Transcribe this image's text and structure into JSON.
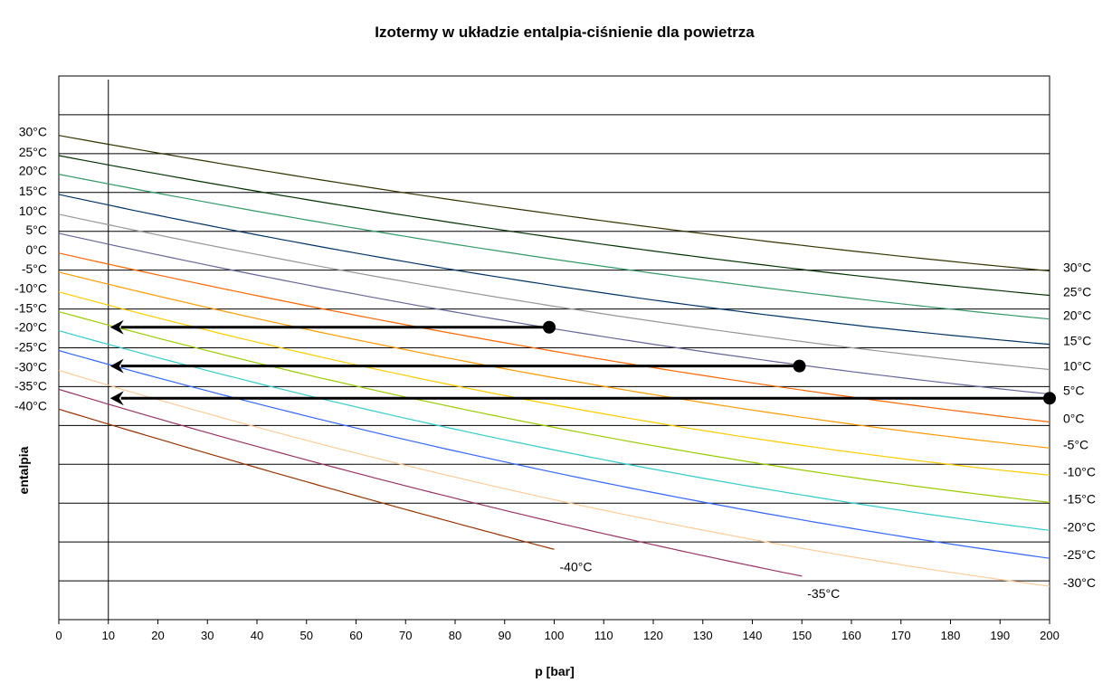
{
  "chart_data": {
    "type": "line",
    "title": "Izotermy w układzie entalpia-ciśnienie dla powietrza",
    "xlabel": "p [bar]",
    "ylabel": "entalpia",
    "xlim": [
      0,
      200
    ],
    "ylim": [
      0,
      14
    ],
    "grid": "horizontal",
    "x_ticks": [
      0,
      10,
      20,
      30,
      40,
      50,
      60,
      70,
      80,
      90,
      100,
      110,
      120,
      130,
      140,
      150,
      160,
      170,
      180,
      190,
      200
    ],
    "reference_line_x": 10,
    "series": [
      {
        "name": "30°C",
        "color": "#333300",
        "x": [
          0,
          100,
          200
        ],
        "y": [
          12.47,
          10.44,
          8.98
        ],
        "left_label": true,
        "right_label": true
      },
      {
        "name": "25°C",
        "color": "#003300",
        "x": [
          0,
          100,
          200
        ],
        "y": [
          11.95,
          9.84,
          8.35
        ],
        "left_label": true,
        "right_label": true
      },
      {
        "name": "20°C",
        "color": "#339966",
        "x": [
          0,
          100,
          200
        ],
        "y": [
          11.47,
          9.28,
          7.74
        ],
        "left_label": true,
        "right_label": true
      },
      {
        "name": "15°C",
        "color": "#003366",
        "x": [
          0,
          100,
          200
        ],
        "y": [
          10.95,
          8.6,
          7.09
        ],
        "left_label": true,
        "right_label": true
      },
      {
        "name": "10°C",
        "color": "#969696",
        "x": [
          0,
          100,
          200
        ],
        "y": [
          10.44,
          8.07,
          6.44
        ],
        "left_label": true,
        "right_label": true
      },
      {
        "name": "5°C",
        "color": "#666699",
        "x": [
          0,
          100,
          200
        ],
        "y": [
          9.95,
          7.49,
          5.81
        ],
        "left_label": true,
        "right_label": true
      },
      {
        "name": "0°C",
        "color": "#ff6600",
        "x": [
          0,
          100,
          200
        ],
        "y": [
          9.44,
          6.91,
          5.09
        ],
        "left_label": true,
        "right_label": true
      },
      {
        "name": "-5°C",
        "color": "#ff9900",
        "x": [
          0,
          100,
          200
        ],
        "y": [
          8.95,
          6.23,
          4.42
        ],
        "left_label": true,
        "right_label": true
      },
      {
        "name": "-10°C",
        "color": "#ffcc00",
        "x": [
          0,
          100,
          200
        ],
        "y": [
          8.44,
          5.53,
          3.72
        ],
        "left_label": true,
        "right_label": true
      },
      {
        "name": "-15°C",
        "color": "#99cc00",
        "x": [
          0,
          100,
          200
        ],
        "y": [
          7.93,
          4.95,
          3.02
        ],
        "left_label": true,
        "right_label": true
      },
      {
        "name": "-20°C",
        "color": "#33cccc",
        "x": [
          0,
          100,
          200
        ],
        "y": [
          7.44,
          4.37,
          2.3
        ],
        "left_label": true,
        "right_label": true
      },
      {
        "name": "-25°C",
        "color": "#3366ff",
        "x": [
          0,
          100,
          200
        ],
        "y": [
          6.93,
          3.79,
          1.58
        ],
        "left_label": true,
        "right_label": true
      },
      {
        "name": "-30°C",
        "color": "#ffcc99",
        "x": [
          0,
          100,
          200
        ],
        "y": [
          6.42,
          3.09,
          0.86
        ],
        "left_label": true,
        "right_label": true
      },
      {
        "name": "-35°C",
        "color": "#993366",
        "x": [
          0,
          100,
          150
        ],
        "y": [
          5.93,
          2.51,
          1.12
        ],
        "left_label": true,
        "right_label": false,
        "end_label": true
      },
      {
        "name": "-40°C",
        "color": "#993300",
        "x": [
          0,
          50,
          100
        ],
        "y": [
          5.42,
          3.55,
          1.81
        ],
        "left_label": true,
        "right_label": false,
        "end_label": true
      }
    ],
    "arrows": [
      {
        "from_x": 99,
        "to_x": 10,
        "y": 7.53
      },
      {
        "from_x": 149.5,
        "to_x": 10,
        "y": 6.53
      },
      {
        "from_x": 200,
        "to_x": 10,
        "y": 5.7
      }
    ]
  }
}
